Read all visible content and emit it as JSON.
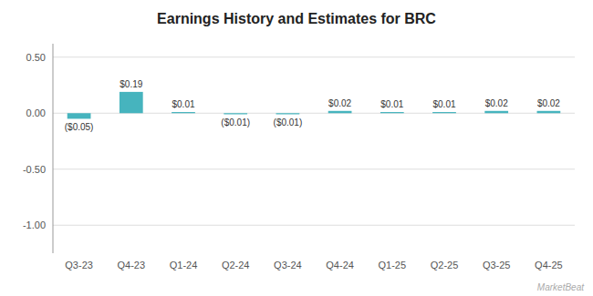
{
  "chart_data": {
    "type": "bar",
    "title": "Earnings History and Estimates for BRC",
    "categories": [
      "Q3-23",
      "Q4-23",
      "Q1-24",
      "Q2-24",
      "Q3-24",
      "Q4-24",
      "Q1-25",
      "Q2-25",
      "Q3-25",
      "Q4-25"
    ],
    "values": [
      -0.05,
      0.19,
      0.01,
      -0.01,
      -0.01,
      0.02,
      0.01,
      0.01,
      0.02,
      0.02
    ],
    "value_labels": [
      "($0.05)",
      "$0.19",
      "$0.01",
      "($0.01)",
      "($0.01)",
      "$0.02",
      "$0.01",
      "$0.01",
      "$0.02",
      "$0.02"
    ],
    "data_labels": true,
    "color": "#46b4be",
    "ylim": [
      -1.25,
      0.62
    ],
    "yticks": [
      {
        "value": -1.0,
        "label": "-1.00"
      },
      {
        "value": -0.5,
        "label": "-0.50"
      },
      {
        "value": 0,
        "label": "0.00"
      },
      {
        "value": 0.5,
        "label": "0.50"
      }
    ],
    "grid": true,
    "annotations": [
      "MarketBeat"
    ]
  }
}
